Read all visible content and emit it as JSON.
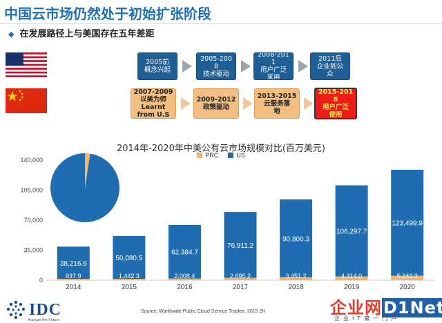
{
  "header": {
    "title": "中国云市场仍然处于初始扩张阶段",
    "bullet": "◆",
    "subtitle": "在发展路径上与美国存在五年差距"
  },
  "flags": {
    "us": "us-flag",
    "cn": "china-flag"
  },
  "timeline": {
    "us": [
      "2005前\n概念兴起",
      "2005-200\n8\n技术驱动",
      "2008-201\n1\n用户广泛\n采用",
      "2011后\n企业到公\n众"
    ],
    "cn": [
      "2007-2009\n以美为师\nLearnt\nfrom U.S",
      "2009-2012\n政策驱动",
      "2013-2015\n云服务落\n地",
      "2015-201\n8\n用户广泛\n使用"
    ]
  },
  "chart_data": {
    "type": "bar",
    "stacked": true,
    "title": "2014年-2020年中美公有云市场规模对比(百万美元)",
    "categories": [
      "2014",
      "2015",
      "2016",
      "2017",
      "2018",
      "2019",
      "2020"
    ],
    "series": [
      {
        "name": "PRC",
        "color": "#f0b46a",
        "values": [
          937.9,
          1442.3,
          2008.4,
          2695.2,
          3451.2,
          4314.0,
          5242.3
        ],
        "labels": [
          "937.9",
          "1,442.3",
          "2,008.4",
          "2,695.2",
          "3,451.2",
          "4,314.0",
          "5,242.3"
        ]
      },
      {
        "name": "US",
        "color": "#1f6db0",
        "values": [
          38216.6,
          50080.5,
          62384.7,
          76911.2,
          90800.3,
          106297.7,
          123499.9
        ],
        "labels": [
          "38,216.6",
          "50,080.5",
          "62,384.7",
          "76,911.2",
          "90,800.3",
          "106,297.7",
          "123,499.9"
        ]
      }
    ],
    "yticks": [
      "0",
      "35,000",
      "70,000",
      "105,000",
      "140,000"
    ],
    "ylim": [
      0,
      140000
    ],
    "grid": false,
    "legend": "top",
    "inset": {
      "type": "pie",
      "year": "2014",
      "values": {
        "US": 38216.6,
        "PRC": 937.9
      }
    }
  },
  "footer": {
    "logo": "IDC",
    "logo_tagline": "Analyze the Future",
    "source": "Source: Worldwide Public Cloud Service Tracker, 2015 2H"
  },
  "watermark": {
    "brand": "企业网",
    "brand2": "D1Net",
    "slogan": "企业IT第一门户"
  }
}
